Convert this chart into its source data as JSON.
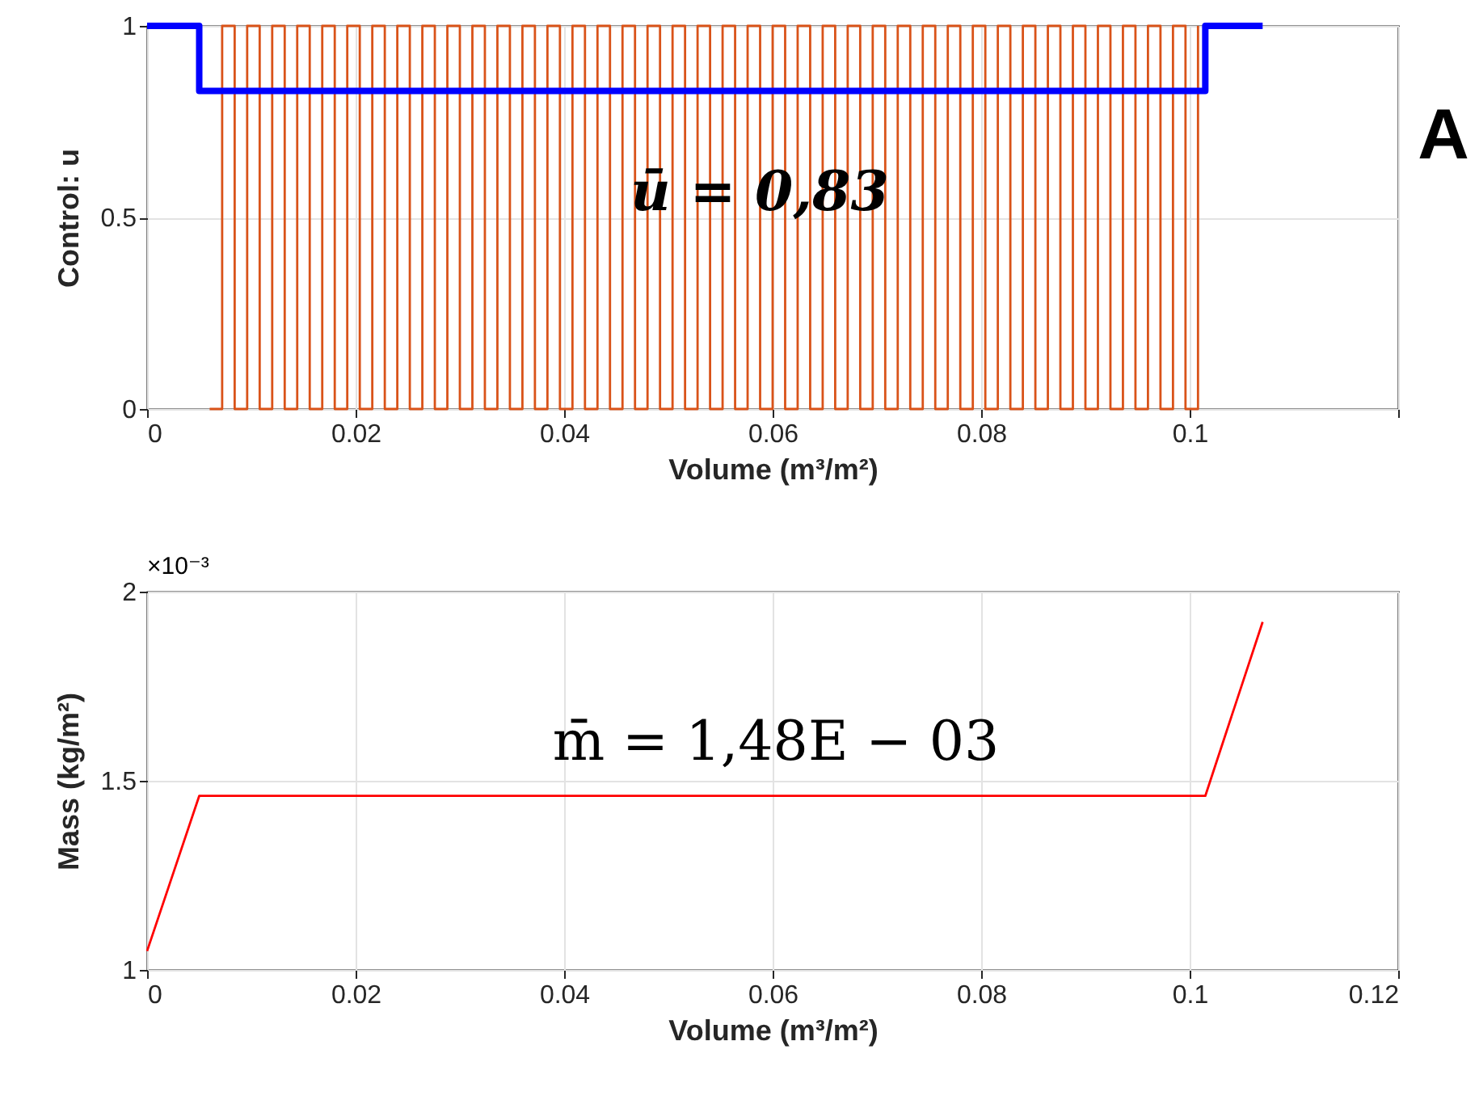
{
  "chart_data": [
    {
      "type": "step",
      "xlabel": "Volume (m³/m²)",
      "ylabel": "Control: u",
      "xlim": [
        0,
        0.12
      ],
      "xticks": [
        0,
        0.02,
        0.04,
        0.06,
        0.08,
        0.1,
        {
          "value": 0.12,
          "label": null
        }
      ],
      "ylim": [
        0,
        1
      ],
      "yticks": [
        0,
        0.5,
        1
      ],
      "grid": true,
      "marker": "none",
      "line_style": "solid",
      "annotations": [
        "ū = 0,83",
        "A"
      ],
      "series": [
        {
          "color": "#d95319",
          "x": [
            0.006,
            0.0072,
            0.0084,
            0.0096,
            0.0108,
            0.012,
            0.0132,
            0.0144,
            0.0156,
            0.0168,
            0.018,
            0.0192,
            0.0204,
            0.0216,
            0.0228,
            0.024,
            0.0252,
            0.0264,
            0.0276,
            0.0288,
            0.03,
            0.0312,
            0.0324,
            0.0336,
            0.0348,
            0.036,
            0.0372,
            0.0384,
            0.0396,
            0.0408,
            0.042,
            0.0432,
            0.0444,
            0.0456,
            0.0468,
            0.048,
            0.0492,
            0.0504,
            0.0516,
            0.0528,
            0.054,
            0.0552,
            0.0564,
            0.0576,
            0.0588,
            0.06,
            0.0612,
            0.0624,
            0.0636,
            0.0648,
            0.066,
            0.0672,
            0.0684,
            0.0696,
            0.0708,
            0.072,
            0.0732,
            0.0744,
            0.0756,
            0.0768,
            0.078,
            0.0792,
            0.0804,
            0.0816,
            0.0828,
            0.084,
            0.0852,
            0.0864,
            0.0876,
            0.0888,
            0.09,
            0.0912,
            0.0924,
            0.0936,
            0.0948,
            0.096,
            0.0972,
            0.0984,
            0.0996,
            0.1008
          ],
          "values": [
            0,
            1,
            0,
            1,
            0,
            1,
            0,
            1,
            0,
            1,
            0,
            1,
            0,
            1,
            0,
            1,
            0,
            1,
            0,
            1,
            0,
            1,
            0,
            1,
            0,
            1,
            0,
            1,
            0,
            1,
            0,
            1,
            0,
            1,
            0,
            1,
            0,
            1,
            0,
            1,
            0,
            1,
            0,
            1,
            0,
            1,
            0,
            1,
            0,
            1,
            0,
            1,
            0,
            1,
            0,
            1,
            0,
            1,
            0,
            1,
            0,
            1,
            0,
            1,
            0,
            1,
            0,
            1,
            0,
            1,
            0,
            1,
            0,
            1,
            0,
            1,
            0,
            1,
            0,
            1
          ]
        },
        {
          "color": "#0000ff",
          "x": [
            0,
            0.005,
            0.1015,
            0.107
          ],
          "values": [
            1,
            0.83,
            1,
            1
          ]
        }
      ]
    },
    {
      "type": "line",
      "xlabel": "Volume (m³/m²)",
      "ylabel": "Mass (kg/m²)",
      "xlim": [
        0,
        0.12
      ],
      "xticks": [
        0,
        0.02,
        0.04,
        0.06,
        0.08,
        0.1,
        0.12
      ],
      "ylim": [
        1,
        2
      ],
      "yticks": [
        1,
        1.5,
        2
      ],
      "grid": true,
      "marker": "none",
      "line_style": "solid",
      "annotations": [
        "m̄ = 1,48E − 03",
        "×10⁻³"
      ],
      "series": [
        {
          "color": "#ff0000",
          "x": [
            0,
            0.005,
            0.1015,
            0.107
          ],
          "values": [
            1.05,
            1.46,
            1.46,
            1.92
          ]
        }
      ]
    }
  ]
}
